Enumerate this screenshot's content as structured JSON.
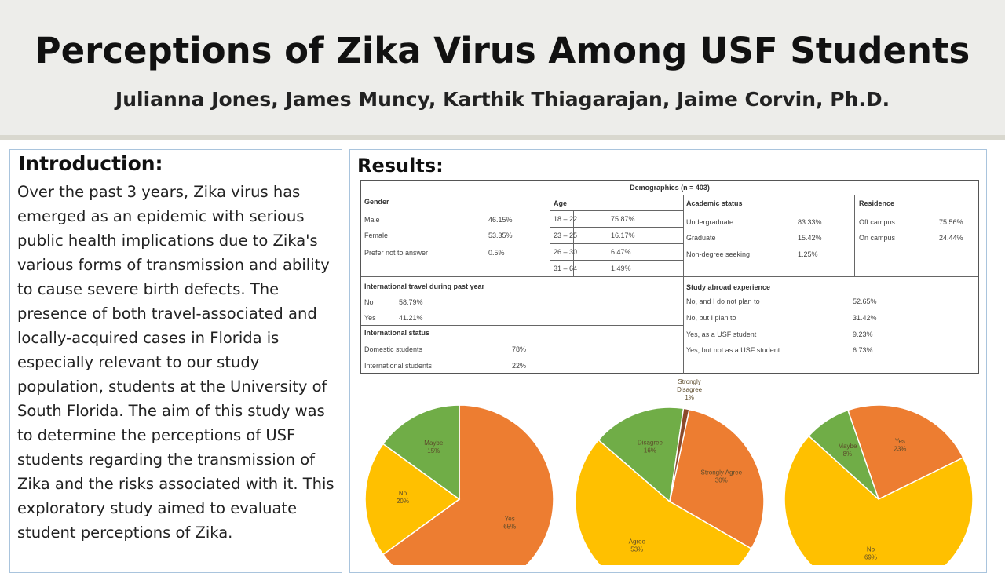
{
  "poster": {
    "title": "Perceptions of Zika Virus Among USF Students",
    "authors": "Julianna Jones, James Muncy, Karthik Thiagarajan, Jaime Corvin, Ph.D."
  },
  "intro": {
    "heading": "Introduction:",
    "body": "Over the past 3 years, Zika virus has emerged as an epidemic with serious public health implications due to Zika's various forms of transmission and ability to cause severe birth defects. The presence of both travel-associated and locally-acquired cases in Florida is especially relevant to our study population, students at the University of South Florida. The aim of this study was to determine the perceptions of USF students regarding the transmission of Zika and the risks associated with it. This exploratory study aimed to evaluate student perceptions of Zika."
  },
  "results": {
    "heading": "Results:",
    "table_title": "Demographics (n = 403)",
    "gender": {
      "heading": "Gender",
      "rows": [
        {
          "label": "Male",
          "value": "46.15%"
        },
        {
          "label": "Female",
          "value": "53.35%"
        },
        {
          "label": "Prefer not to answer",
          "value": "0.5%"
        }
      ]
    },
    "age": {
      "heading": "Age",
      "rows": [
        {
          "label": "18 – 22",
          "value": "75.87%"
        },
        {
          "label": "23 – 25",
          "value": "16.17%"
        },
        {
          "label": "26 – 30",
          "value": "6.47%"
        },
        {
          "label": "31 – 64",
          "value": "1.49%"
        }
      ]
    },
    "academic": {
      "heading": "Academic status",
      "rows": [
        {
          "label": "Undergraduate",
          "value": "83.33%"
        },
        {
          "label": "Graduate",
          "value": "15.42%"
        },
        {
          "label": "Non-degree seeking",
          "value": "1.25%"
        }
      ]
    },
    "residence": {
      "heading": "Residence",
      "rows": [
        {
          "label": "Off campus",
          "value": "75.56%"
        },
        {
          "label": "On campus",
          "value": "24.44%"
        }
      ]
    },
    "travel": {
      "heading": "International travel during past year",
      "rows": [
        {
          "label": "No",
          "value": "58.79%"
        },
        {
          "label": "Yes",
          "value": "41.21%"
        }
      ]
    },
    "intl": {
      "heading": "International status",
      "rows": [
        {
          "label": "Domestic students",
          "value": "78%"
        },
        {
          "label": "International students",
          "value": "22%"
        }
      ]
    },
    "abroad": {
      "heading": "Study abroad experience",
      "rows": [
        {
          "label": "No, and I do not plan to",
          "value": "52.65%"
        },
        {
          "label": "No, but I plan to",
          "value": "31.42%"
        },
        {
          "label": "Yes, as a USF student",
          "value": "9.23%"
        },
        {
          "label": "Yes, but not as a USF student",
          "value": "6.73%"
        }
      ]
    }
  },
  "chart_data": [
    {
      "type": "pie",
      "slices": [
        {
          "label": "Yes",
          "display": "65%",
          "value": 65,
          "color": "#ed7d31"
        },
        {
          "label": "No",
          "display": "20%",
          "value": 20,
          "color": "#ffc000"
        },
        {
          "label": "Maybe",
          "display": "15%",
          "value": 15,
          "color": "#70ad47"
        }
      ]
    },
    {
      "type": "pie",
      "slices": [
        {
          "label": "Strongly Agree",
          "display": "30%",
          "value": 30,
          "color": "#ed7d31"
        },
        {
          "label": "Agree",
          "display": "53%",
          "value": 53,
          "color": "#ffc000"
        },
        {
          "label": "Disagree",
          "display": "16%",
          "value": 16,
          "color": "#70ad47"
        },
        {
          "label": "Strongly Disagree",
          "display": "1%",
          "value": 1,
          "color": "#8b4a2b"
        }
      ]
    },
    {
      "type": "pie",
      "slices": [
        {
          "label": "Yes",
          "display": "23%",
          "value": 23,
          "color": "#ed7d31"
        },
        {
          "label": "No",
          "display": "69%",
          "value": 69,
          "color": "#ffc000"
        },
        {
          "label": "Maybe",
          "display": "8%",
          "value": 8,
          "color": "#70ad47"
        }
      ]
    }
  ]
}
